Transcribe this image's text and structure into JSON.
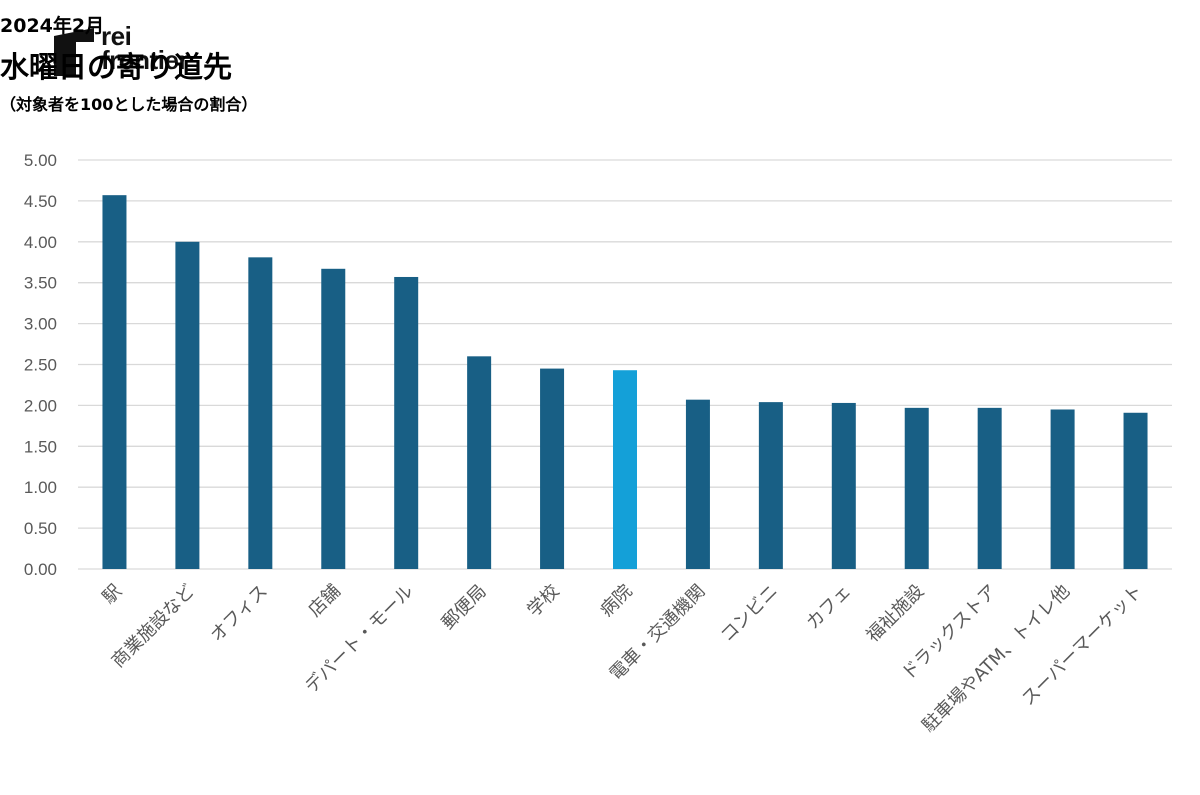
{
  "brand": {
    "line1": "rei",
    "line2": "frontier"
  },
  "header": {
    "date": "2024年2月",
    "title": "水曜日の寄り道先",
    "subtitle": "（対象者を100とした場合の割合）"
  },
  "colors": {
    "bar": "#185f85",
    "highlight": "#14a0d8",
    "grid": "#d9d9d9",
    "text": "#595959"
  },
  "chart_data": {
    "type": "bar",
    "categories": [
      "駅",
      "商業施設など",
      "オフィス",
      "店舗",
      "デパート・モール",
      "郵便局",
      "学校",
      "病院",
      "電車・交通機関",
      "コンビニ",
      "カフェ",
      "福祉施設",
      "ドラックストア",
      "駐車場やATM、トイレ他",
      "スーパーマーケット"
    ],
    "values": [
      4.57,
      4.0,
      3.81,
      3.67,
      3.57,
      2.6,
      2.45,
      2.43,
      2.07,
      2.04,
      2.03,
      1.97,
      1.97,
      1.95,
      1.91
    ],
    "highlight_index": 7,
    "yticks": [
      "0.00",
      "0.50",
      "1.00",
      "1.50",
      "2.00",
      "2.50",
      "3.00",
      "3.50",
      "4.00",
      "4.50",
      "5.00"
    ],
    "ylim": [
      0,
      5
    ],
    "grid": true
  }
}
